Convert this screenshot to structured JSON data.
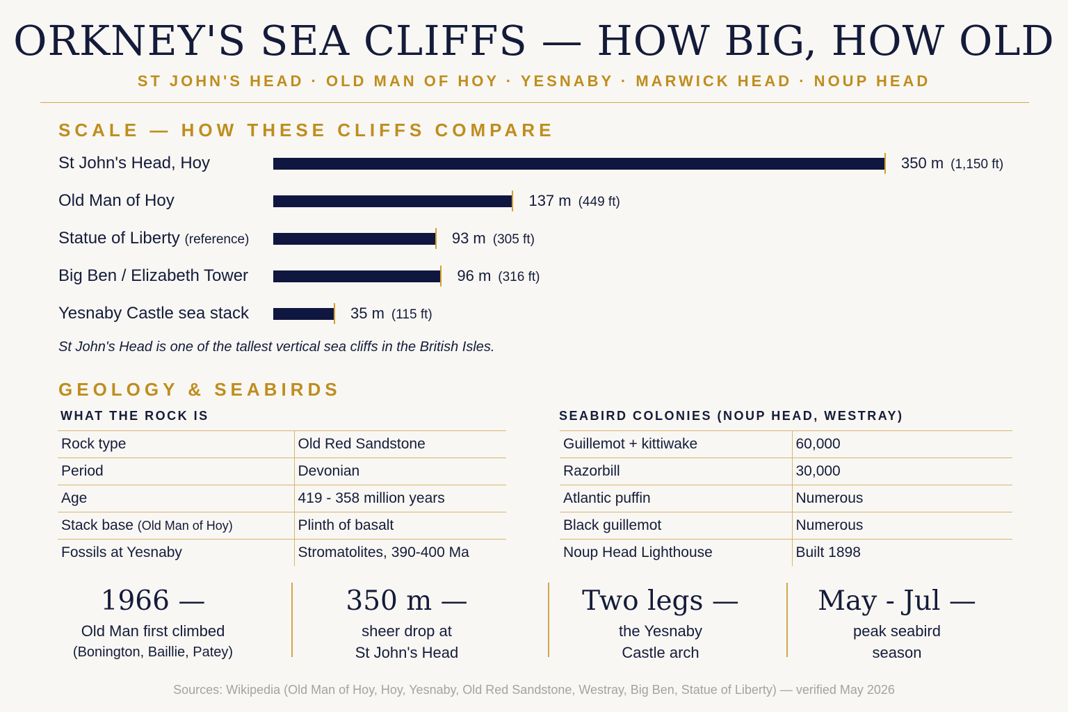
{
  "header": {
    "title": "ORKNEY'S SEA CLIFFS — HOW BIG, HOW OLD",
    "subtitle": "ST JOHN'S HEAD · OLD MAN OF HOY · YESNABY · MARWICK HEAD · NOUP HEAD"
  },
  "scale_section": {
    "heading": "SCALE — HOW THESE CLIFFS COMPARE",
    "footnote": "St John's Head is one of the tallest vertical sea cliffs in the British Isles."
  },
  "chart_data": {
    "type": "bar",
    "orientation": "horizontal",
    "categories": [
      "St John's Head, Hoy",
      "Old Man of Hoy",
      "Statue of Liberty",
      "Big Ben / Elizabeth Tower",
      "Yesnaby Castle sea stack"
    ],
    "category_notes": [
      "",
      "",
      "(reference)",
      "",
      ""
    ],
    "values": [
      350,
      137,
      93,
      96,
      35
    ],
    "value_labels": [
      "350 m",
      "137 m",
      "93 m",
      "96 m",
      "35 m"
    ],
    "feet_labels": [
      "(1,150 ft)",
      "(449 ft)",
      "(305 ft)",
      "(316 ft)",
      "(115 ft)"
    ],
    "unit": "m",
    "xlim": [
      0,
      350
    ],
    "grid": false,
    "colors": {
      "bar": "#0f1640",
      "tick": "#d2a02e"
    }
  },
  "geology_section": {
    "heading": "GEOLOGY & SEABIRDS",
    "rock_table": {
      "heading": "WHAT THE ROCK IS",
      "rows": [
        {
          "label": "Rock type",
          "note": "",
          "value": "Old Red Sandstone"
        },
        {
          "label": "Period",
          "note": "",
          "value": "Devonian"
        },
        {
          "label": "Age",
          "note": "",
          "value": "419 - 358 million years"
        },
        {
          "label": "Stack base ",
          "note": "(Old Man of Hoy)",
          "value": "Plinth of basalt"
        },
        {
          "label": "Fossils at Yesnaby",
          "note": "",
          "value": "Stromatolites, 390-400 Ma"
        }
      ]
    },
    "seabird_table": {
      "heading": "SEABIRD COLONIES (NOUP HEAD,  WESTRAY)",
      "rows": [
        {
          "label": "Guillemot + kittiwake",
          "value": "60,000"
        },
        {
          "label": "Razorbill",
          "value": "30,000"
        },
        {
          "label": "Atlantic puffin",
          "value": "Numerous"
        },
        {
          "label": "Black guillemot",
          "value": "Numerous"
        },
        {
          "label": "Noup Head Lighthouse",
          "value": "Built 1898"
        }
      ]
    }
  },
  "stats": [
    {
      "value": "1966 —",
      "line1": "Old Man first climbed",
      "line2": "(Bonington, Baillie, Patey)"
    },
    {
      "value": "350 m —",
      "line1": "sheer drop at",
      "line2": "St John's Head"
    },
    {
      "value": "Two legs —",
      "line1": "the Yesnaby",
      "line2": "Castle arch"
    },
    {
      "value": "May - Jul —",
      "line1": "peak seabird",
      "line2": "season"
    }
  ],
  "sources": "Sources: Wikipedia (Old Man of Hoy, Hoy, Yesnaby, Old Red Sandstone, Westray, Big Ben, Statue  of Liberty) — verified May 2026"
}
